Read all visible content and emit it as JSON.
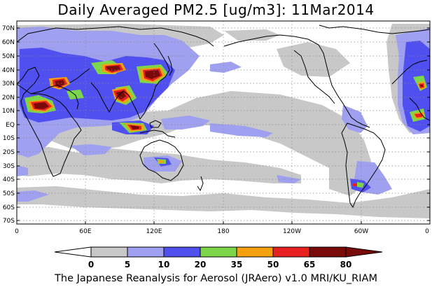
{
  "title": "Daily Averaged PM2.5 [ug/m3]: 11Mar2014",
  "footer": "The Japanese Reanalysis for Aerosol (JRAero) v1.0 MRI/KU_RIAM",
  "lat_labels": [
    "70N",
    "60N",
    "50N",
    "40N",
    "30N",
    "20N",
    "10N",
    "EQ",
    "10S",
    "20S",
    "30S",
    "40S",
    "50S",
    "60S",
    "70S"
  ],
  "lon_labels": [
    "0",
    "60E",
    "120E",
    "180",
    "120W",
    "60W",
    "0"
  ],
  "colorbar": {
    "levels": [
      "0",
      "5",
      "10",
      "20",
      "35",
      "50",
      "65",
      "80"
    ],
    "colors": [
      "#ffffff",
      "#c8c8c8",
      "#a0a0f0",
      "#5050f0",
      "#7cd84a",
      "#f5a010",
      "#e82020",
      "#7a0a0a"
    ]
  }
}
